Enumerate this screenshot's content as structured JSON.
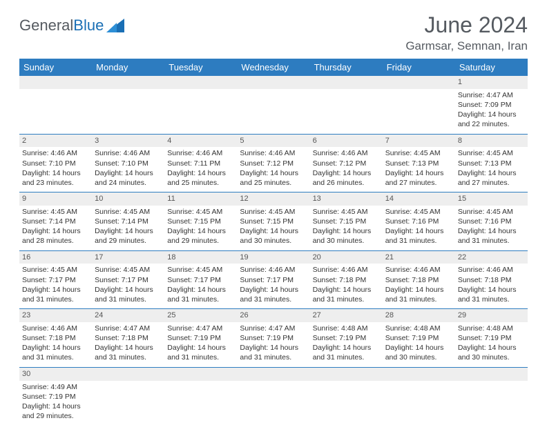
{
  "brand": {
    "name1": "General",
    "name2": "Blue"
  },
  "title": "June 2024",
  "location": "Garmsar, Semnan, Iran",
  "columns": [
    "Sunday",
    "Monday",
    "Tuesday",
    "Wednesday",
    "Thursday",
    "Friday",
    "Saturday"
  ],
  "colors": {
    "header_bg": "#2d7cc0",
    "header_fg": "#ffffff",
    "daynum_bg": "#eeeeee",
    "text": "#333333",
    "title": "#555a60",
    "rule": "#2d7cc0"
  },
  "typography": {
    "title_fontsize": 32,
    "location_fontsize": 17,
    "header_fontsize": 13,
    "cell_fontsize": 10.5
  },
  "weeks": [
    [
      null,
      null,
      null,
      null,
      null,
      null,
      {
        "n": "1",
        "sr": "Sunrise: 4:47 AM",
        "ss": "Sunset: 7:09 PM",
        "dl": "Daylight: 14 hours and 22 minutes."
      }
    ],
    [
      {
        "n": "2",
        "sr": "Sunrise: 4:46 AM",
        "ss": "Sunset: 7:10 PM",
        "dl": "Daylight: 14 hours and 23 minutes."
      },
      {
        "n": "3",
        "sr": "Sunrise: 4:46 AM",
        "ss": "Sunset: 7:10 PM",
        "dl": "Daylight: 14 hours and 24 minutes."
      },
      {
        "n": "4",
        "sr": "Sunrise: 4:46 AM",
        "ss": "Sunset: 7:11 PM",
        "dl": "Daylight: 14 hours and 25 minutes."
      },
      {
        "n": "5",
        "sr": "Sunrise: 4:46 AM",
        "ss": "Sunset: 7:12 PM",
        "dl": "Daylight: 14 hours and 25 minutes."
      },
      {
        "n": "6",
        "sr": "Sunrise: 4:46 AM",
        "ss": "Sunset: 7:12 PM",
        "dl": "Daylight: 14 hours and 26 minutes."
      },
      {
        "n": "7",
        "sr": "Sunrise: 4:45 AM",
        "ss": "Sunset: 7:13 PM",
        "dl": "Daylight: 14 hours and 27 minutes."
      },
      {
        "n": "8",
        "sr": "Sunrise: 4:45 AM",
        "ss": "Sunset: 7:13 PM",
        "dl": "Daylight: 14 hours and 27 minutes."
      }
    ],
    [
      {
        "n": "9",
        "sr": "Sunrise: 4:45 AM",
        "ss": "Sunset: 7:14 PM",
        "dl": "Daylight: 14 hours and 28 minutes."
      },
      {
        "n": "10",
        "sr": "Sunrise: 4:45 AM",
        "ss": "Sunset: 7:14 PM",
        "dl": "Daylight: 14 hours and 29 minutes."
      },
      {
        "n": "11",
        "sr": "Sunrise: 4:45 AM",
        "ss": "Sunset: 7:15 PM",
        "dl": "Daylight: 14 hours and 29 minutes."
      },
      {
        "n": "12",
        "sr": "Sunrise: 4:45 AM",
        "ss": "Sunset: 7:15 PM",
        "dl": "Daylight: 14 hours and 30 minutes."
      },
      {
        "n": "13",
        "sr": "Sunrise: 4:45 AM",
        "ss": "Sunset: 7:15 PM",
        "dl": "Daylight: 14 hours and 30 minutes."
      },
      {
        "n": "14",
        "sr": "Sunrise: 4:45 AM",
        "ss": "Sunset: 7:16 PM",
        "dl": "Daylight: 14 hours and 31 minutes."
      },
      {
        "n": "15",
        "sr": "Sunrise: 4:45 AM",
        "ss": "Sunset: 7:16 PM",
        "dl": "Daylight: 14 hours and 31 minutes."
      }
    ],
    [
      {
        "n": "16",
        "sr": "Sunrise: 4:45 AM",
        "ss": "Sunset: 7:17 PM",
        "dl": "Daylight: 14 hours and 31 minutes."
      },
      {
        "n": "17",
        "sr": "Sunrise: 4:45 AM",
        "ss": "Sunset: 7:17 PM",
        "dl": "Daylight: 14 hours and 31 minutes."
      },
      {
        "n": "18",
        "sr": "Sunrise: 4:45 AM",
        "ss": "Sunset: 7:17 PM",
        "dl": "Daylight: 14 hours and 31 minutes."
      },
      {
        "n": "19",
        "sr": "Sunrise: 4:46 AM",
        "ss": "Sunset: 7:17 PM",
        "dl": "Daylight: 14 hours and 31 minutes."
      },
      {
        "n": "20",
        "sr": "Sunrise: 4:46 AM",
        "ss": "Sunset: 7:18 PM",
        "dl": "Daylight: 14 hours and 31 minutes."
      },
      {
        "n": "21",
        "sr": "Sunrise: 4:46 AM",
        "ss": "Sunset: 7:18 PM",
        "dl": "Daylight: 14 hours and 31 minutes."
      },
      {
        "n": "22",
        "sr": "Sunrise: 4:46 AM",
        "ss": "Sunset: 7:18 PM",
        "dl": "Daylight: 14 hours and 31 minutes."
      }
    ],
    [
      {
        "n": "23",
        "sr": "Sunrise: 4:46 AM",
        "ss": "Sunset: 7:18 PM",
        "dl": "Daylight: 14 hours and 31 minutes."
      },
      {
        "n": "24",
        "sr": "Sunrise: 4:47 AM",
        "ss": "Sunset: 7:18 PM",
        "dl": "Daylight: 14 hours and 31 minutes."
      },
      {
        "n": "25",
        "sr": "Sunrise: 4:47 AM",
        "ss": "Sunset: 7:19 PM",
        "dl": "Daylight: 14 hours and 31 minutes."
      },
      {
        "n": "26",
        "sr": "Sunrise: 4:47 AM",
        "ss": "Sunset: 7:19 PM",
        "dl": "Daylight: 14 hours and 31 minutes."
      },
      {
        "n": "27",
        "sr": "Sunrise: 4:48 AM",
        "ss": "Sunset: 7:19 PM",
        "dl": "Daylight: 14 hours and 31 minutes."
      },
      {
        "n": "28",
        "sr": "Sunrise: 4:48 AM",
        "ss": "Sunset: 7:19 PM",
        "dl": "Daylight: 14 hours and 30 minutes."
      },
      {
        "n": "29",
        "sr": "Sunrise: 4:48 AM",
        "ss": "Sunset: 7:19 PM",
        "dl": "Daylight: 14 hours and 30 minutes."
      }
    ],
    [
      {
        "n": "30",
        "sr": "Sunrise: 4:49 AM",
        "ss": "Sunset: 7:19 PM",
        "dl": "Daylight: 14 hours and 29 minutes."
      },
      null,
      null,
      null,
      null,
      null,
      null
    ]
  ]
}
